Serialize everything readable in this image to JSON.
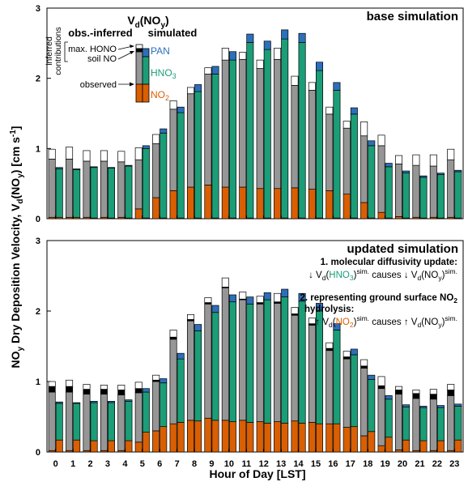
{
  "colors": {
    "obs_nonNO2": "#969696",
    "obs_NO2": "#d95f02",
    "HNO3": "#1b9e77",
    "PAN": "#2c6fbb",
    "soilNO": "#000000",
    "maxHONO": "#ffffff"
  },
  "ylabel_prefix": "NO",
  "ylabel_sub": "y",
  "ylabel_text": " Dry Deposition Velocity, V",
  "ylabel_d": "d",
  "ylabel_paren": "(NO",
  "ylabel_units": ") [cm s",
  "ylabel_exp": "-1",
  "ylabel_close": "]",
  "xlabel": "Hour of Day [LST]",
  "legend": {
    "title_v": "V",
    "title_d": "d",
    "title_no": "(NO",
    "title_y": "y",
    "title_close": ")",
    "obs_label": "obs.-inferred",
    "sim_label": "simulated",
    "inferred_line1": "inferred",
    "inferred_line2": "contributions",
    "max_hono": "max. HONO",
    "soil_no": "soil NO",
    "observed": "observed",
    "pan": "PAN",
    "hno3_base": "HNO",
    "hno3_sub": "3",
    "no2_base": "NO",
    "no2_sub": "2"
  },
  "annotations": {
    "title": "1. molecular diffusivity update:",
    "line1_a": "↓ V",
    "line1_d": "d",
    "line1_open": "(",
    "line1_hno3": "HNO",
    "line1_3": "3",
    "line1_close": ")",
    "line1_sim": "sim.",
    "line1_causes": " causes ↓ V",
    "line1_d2": "d",
    "line1_noy": "(NO",
    "line1_y": "y",
    "line1_close2": ")",
    "line1_sim2": "sim.",
    "title2a": "2. representing ground surface NO",
    "title2a_sub": "2",
    "title2b": "hydrolysis:",
    "line2_a": "↑ V",
    "line2_d": "d",
    "line2_open": "(",
    "line2_no2": "NO",
    "line2_2": "2",
    "line2_close": ")",
    "line2_sim": "sim.",
    "line2_causes": " causes ↑ V",
    "line2_d2": "d",
    "line2_noy": "(NO",
    "line2_y": "y",
    "line2_close2": ")",
    "line2_sim2": "sim."
  },
  "chart_data": [
    {
      "type": "bar",
      "title": "base simulation",
      "ylim": [
        0,
        3
      ],
      "yticks": [
        0,
        1,
        2,
        3
      ],
      "categories": [
        "0",
        "1",
        "2",
        "3",
        "4",
        "5",
        "6",
        "7",
        "8",
        "9",
        "10",
        "11",
        "12",
        "13",
        "14",
        "15",
        "16",
        "17",
        "18",
        "19",
        "20",
        "21",
        "22",
        "23"
      ],
      "observed": {
        "NO2": [
          0.02,
          0.02,
          0.02,
          0.02,
          0.02,
          0.14,
          0.3,
          0.4,
          0.45,
          0.48,
          0.45,
          0.45,
          0.43,
          0.43,
          0.44,
          0.42,
          0.4,
          0.35,
          0.23,
          0.09,
          0.03,
          0.02,
          0.02,
          0.02
        ],
        "total": [
          0.85,
          0.85,
          0.82,
          0.82,
          0.81,
          0.84,
          1.07,
          1.56,
          1.78,
          2.06,
          2.26,
          2.27,
          2.14,
          2.27,
          1.9,
          1.83,
          1.49,
          1.29,
          1.18,
          1.04,
          0.78,
          0.76,
          0.75,
          0.84
        ],
        "soilNO": [
          0,
          0,
          0,
          0,
          0,
          0,
          0,
          0,
          0,
          0,
          0,
          0,
          0,
          0,
          0,
          0,
          0,
          0,
          0,
          0,
          0,
          0,
          0,
          0
        ],
        "maxHONO": [
          0.14,
          0.17,
          0.15,
          0.15,
          0.15,
          0.17,
          0.13,
          0.12,
          0.09,
          0.09,
          0.17,
          0.1,
          0.12,
          0.16,
          0.13,
          0.11,
          0.1,
          0.1,
          0.2,
          0.15,
          0.12,
          0.15,
          0.16,
          0.15
        ]
      },
      "simulated": {
        "NO2": [
          0.02,
          0.02,
          0.01,
          0.01,
          0.01,
          0.01,
          0.01,
          0.01,
          0.01,
          0.01,
          0.01,
          0.01,
          0.01,
          0.01,
          0.01,
          0.01,
          0.01,
          0.01,
          0.01,
          0.01,
          0.01,
          0.01,
          0.01,
          0.01
        ],
        "HNO3": [
          0.69,
          0.68,
          0.72,
          0.71,
          0.74,
          0.99,
          1.21,
          1.5,
          1.8,
          2.05,
          2.25,
          2.5,
          2.4,
          2.55,
          2.5,
          2.1,
          1.82,
          1.48,
          1.03,
          0.73,
          0.64,
          0.58,
          0.62,
          0.66
        ],
        "PAN": [
          0.02,
          0.01,
          0.01,
          0.01,
          0.01,
          0.04,
          0.06,
          0.08,
          0.1,
          0.11,
          0.12,
          0.12,
          0.12,
          0.13,
          0.13,
          0.12,
          0.11,
          0.09,
          0.07,
          0.05,
          0.03,
          0.02,
          0.02,
          0.02
        ]
      }
    },
    {
      "type": "bar",
      "title": "updated simulation",
      "ylim": [
        0,
        3
      ],
      "yticks": [
        0,
        1,
        2,
        3
      ],
      "categories": [
        "0",
        "1",
        "2",
        "3",
        "4",
        "5",
        "6",
        "7",
        "8",
        "9",
        "10",
        "11",
        "12",
        "13",
        "14",
        "15",
        "16",
        "17",
        "18",
        "19",
        "20",
        "21",
        "22",
        "23"
      ],
      "observed": {
        "NO2": [
          0.02,
          0.02,
          0.02,
          0.02,
          0.02,
          0.14,
          0.3,
          0.4,
          0.45,
          0.48,
          0.45,
          0.45,
          0.43,
          0.43,
          0.44,
          0.42,
          0.4,
          0.35,
          0.23,
          0.09,
          0.03,
          0.02,
          0.02,
          0.02
        ],
        "total": [
          0.85,
          0.85,
          0.82,
          0.82,
          0.81,
          0.84,
          1.0,
          1.6,
          1.86,
          2.1,
          2.33,
          2.16,
          2.1,
          2.11,
          1.94,
          1.8,
          1.44,
          1.32,
          1.19,
          0.9,
          0.82,
          0.76,
          0.75,
          0.8
        ],
        "soilNO": [
          0.08,
          0.08,
          0.07,
          0.07,
          0.07,
          0.06,
          0.02,
          0.03,
          0.02,
          0.02,
          0.01,
          0.01,
          0.02,
          0.02,
          0.02,
          0.02,
          0.03,
          0.03,
          0.03,
          0.04,
          0.06,
          0.07,
          0.07,
          0.08
        ],
        "maxHONO": [
          0.07,
          0.09,
          0.07,
          0.06,
          0.07,
          0.09,
          0.07,
          0.1,
          0.07,
          0.07,
          0.13,
          0.1,
          0.09,
          0.12,
          0.09,
          0.08,
          0.08,
          0.08,
          0.09,
          0.13,
          0.05,
          0.05,
          0.07,
          0.08
        ]
      },
      "simulated": {
        "NO2": [
          0.17,
          0.17,
          0.16,
          0.16,
          0.16,
          0.28,
          0.36,
          0.42,
          0.44,
          0.45,
          0.43,
          0.42,
          0.41,
          0.41,
          0.41,
          0.4,
          0.4,
          0.36,
          0.29,
          0.21,
          0.17,
          0.16,
          0.16,
          0.17
        ],
        "HNO3": [
          0.52,
          0.52,
          0.54,
          0.54,
          0.56,
          0.57,
          0.62,
          0.9,
          1.28,
          1.53,
          1.7,
          1.68,
          1.75,
          1.79,
          1.73,
          1.61,
          1.33,
          1.02,
          0.74,
          0.54,
          0.47,
          0.47,
          0.47,
          0.48
        ],
        "PAN": [
          0.02,
          0.01,
          0.02,
          0.02,
          0.02,
          0.05,
          0.06,
          0.08,
          0.09,
          0.1,
          0.1,
          0.1,
          0.1,
          0.11,
          0.11,
          0.1,
          0.09,
          0.08,
          0.06,
          0.05,
          0.03,
          0.02,
          0.03,
          0.03
        ]
      }
    }
  ]
}
